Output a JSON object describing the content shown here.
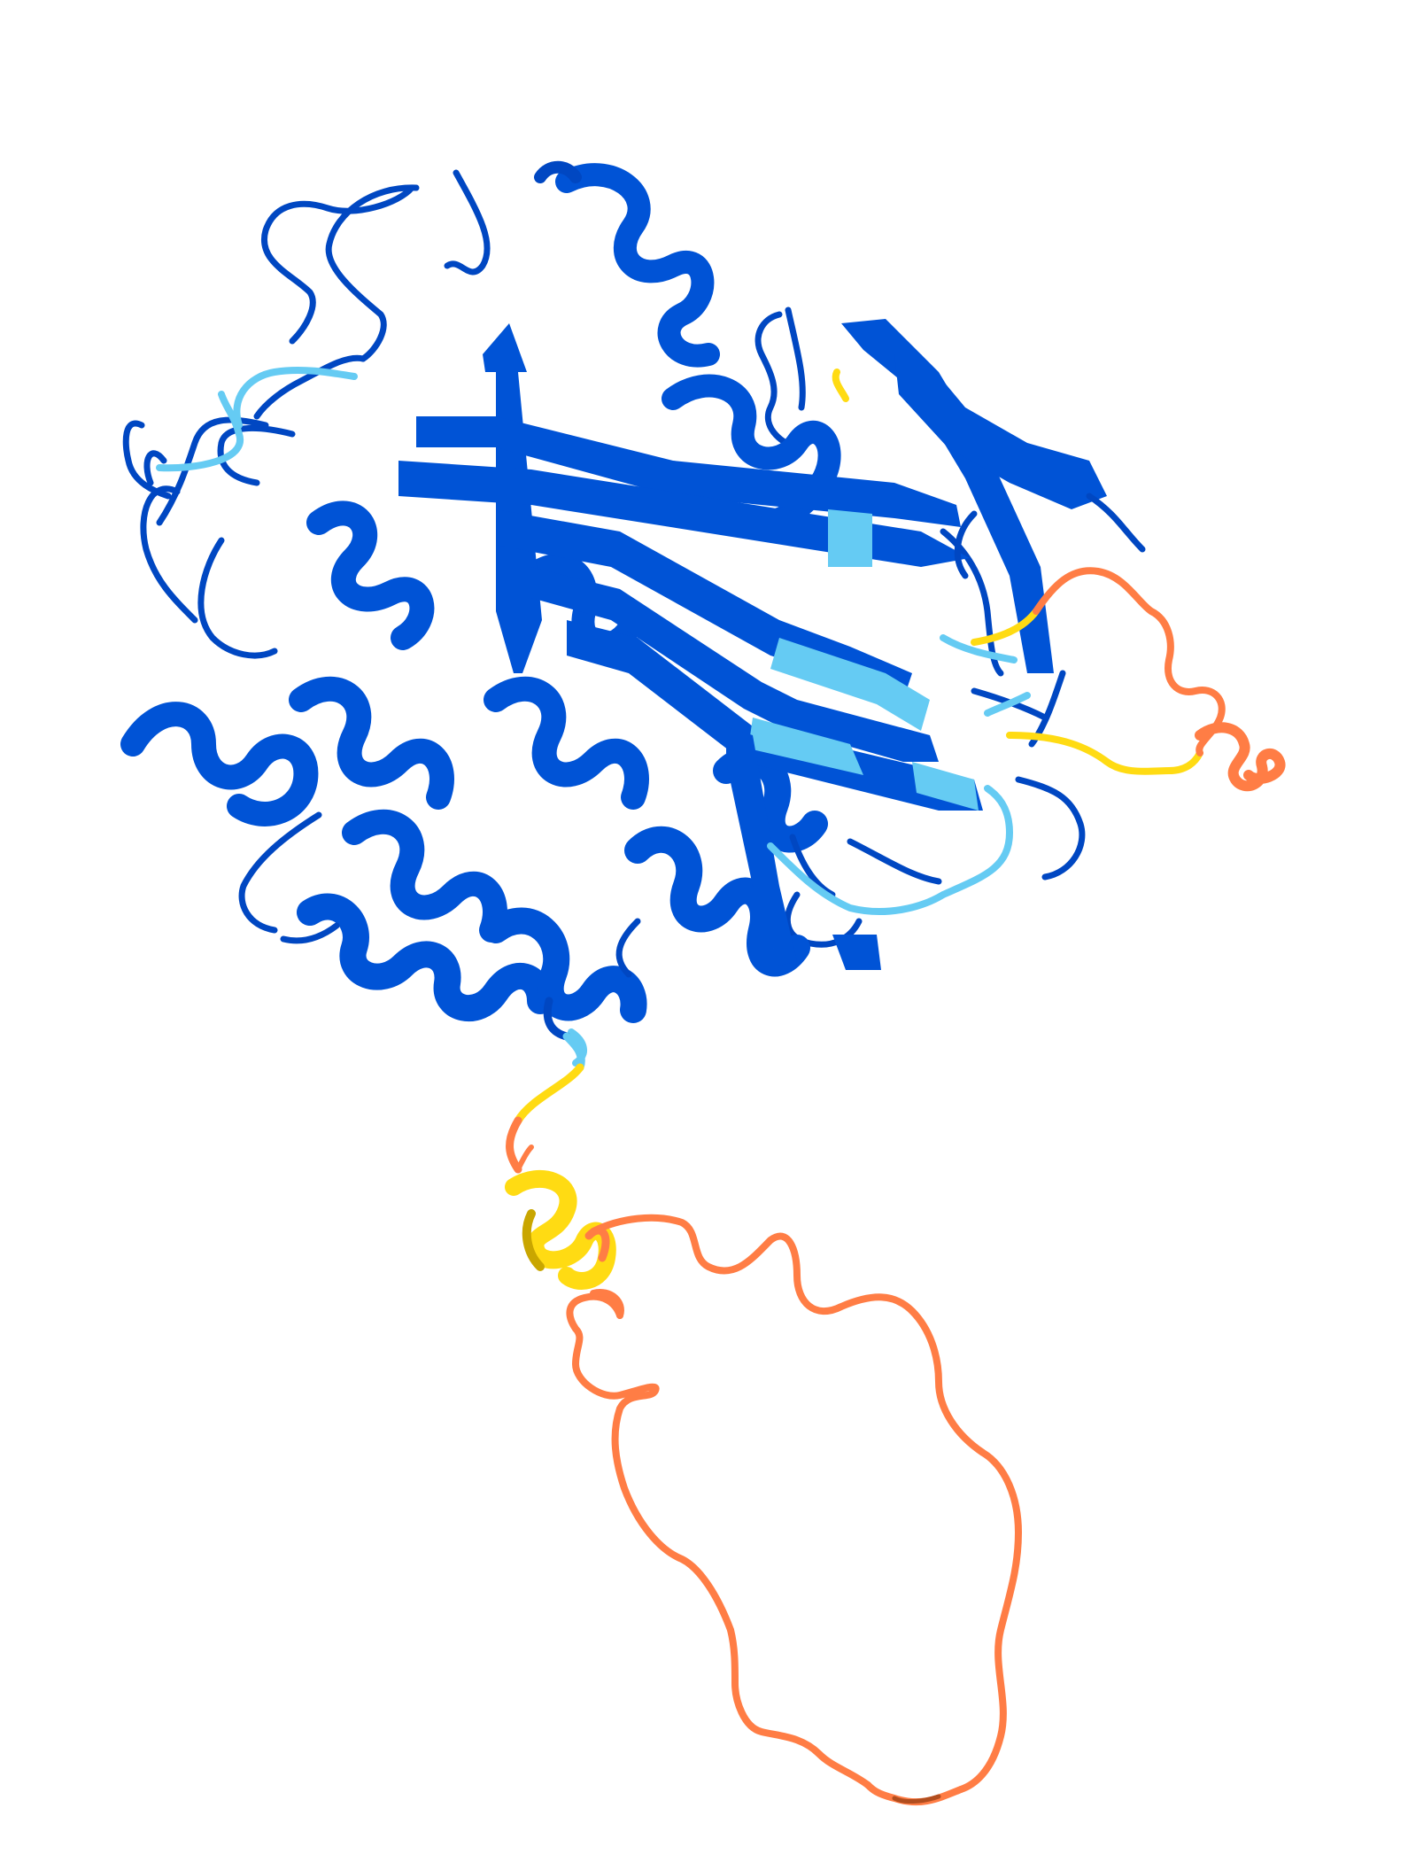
{
  "scene": {
    "background": "#ffffff",
    "representation": "cartoon",
    "palette": {
      "very_high": "#0053d6",
      "high": "#65cbf3",
      "low": "#ffdb13",
      "very_low": "#ff7d45"
    }
  }
}
